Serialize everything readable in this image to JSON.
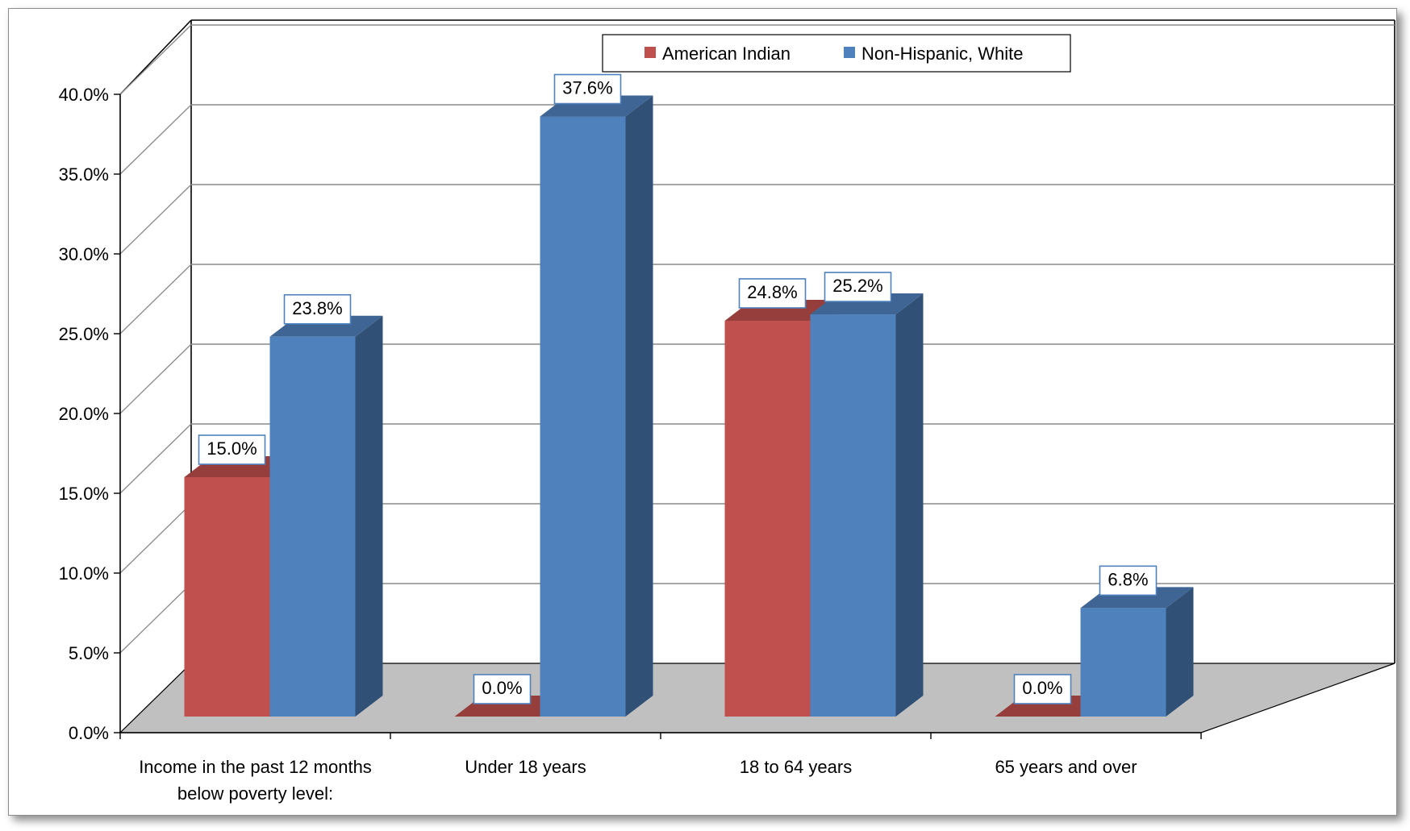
{
  "chart_data": {
    "type": "bar",
    "style": "3d-clustered-column",
    "categories": [
      [
        "Income in the past 12 months",
        "below poverty level:"
      ],
      [
        "Under 18 years"
      ],
      [
        "18 to 64 years"
      ],
      [
        "65 years and over"
      ]
    ],
    "series": [
      {
        "name": "American Indian",
        "color": "#c0504d",
        "values": [
          15.0,
          0.0,
          24.8,
          0.0
        ],
        "labels": [
          "15.0%",
          "0.0%",
          "24.8%",
          "0.0%"
        ]
      },
      {
        "name": "Non-Hispanic, White",
        "color": "#4f81bd",
        "values": [
          23.8,
          37.6,
          25.2,
          6.8
        ],
        "labels": [
          "23.8%",
          "37.6%",
          "25.2%",
          "6.8%"
        ]
      }
    ],
    "ylim": [
      0,
      40
    ],
    "yticks": [
      0,
      5,
      10,
      15,
      20,
      25,
      30,
      35,
      40
    ],
    "ytick_labels": [
      "0.0%",
      "5.0%",
      "10.0%",
      "15.0%",
      "20.0%",
      "25.0%",
      "30.0%",
      "35.0%",
      "40.0%"
    ],
    "grid": true,
    "legend_position": "top-center",
    "floor_color": "#c0c0c0"
  }
}
